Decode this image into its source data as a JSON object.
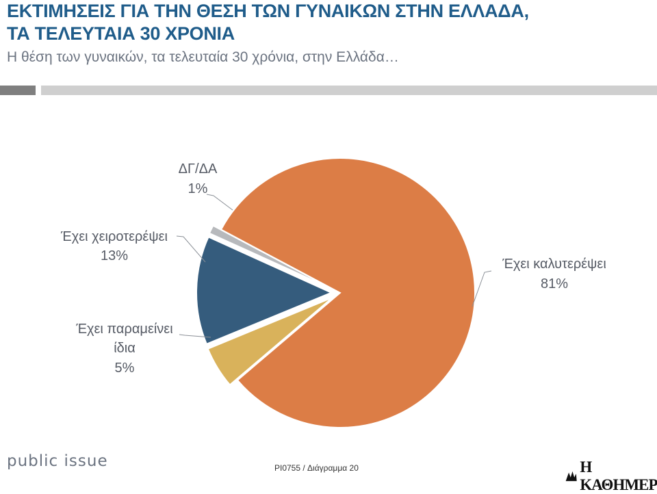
{
  "header": {
    "title_line1": "ΕΚΤΙΜΗΣΕΙΣ ΓΙΑ ΤΗΝ ΘΕΣΗ ΤΩΝ ΓΥΝΑΙΚΩΝ ΣΤΗΝ ΕΛΛΑΔΑ,",
    "title_line2": "ΤΑ ΤΕΛΕΥΤΑΙΑ 30 ΧΡΟΝΙΑ",
    "subtitle": "Η θέση των γυναικών, τα τελευταία 30 χρόνια, στην Ελλάδα…"
  },
  "chart_data": {
    "type": "pie",
    "slices": [
      {
        "label": "Έχει καλυτερέψει",
        "value": 81,
        "display": "81%",
        "color": "#dc7d46"
      },
      {
        "label": "Έχει παραμείνει ίδια",
        "label_lines": [
          "Έχει παραμείνει",
          "ίδια"
        ],
        "value": 5,
        "display": "5%",
        "color": "#d9b25b"
      },
      {
        "label": "Έχει χειροτερέψει",
        "value": 13,
        "display": "13%",
        "color": "#355c7d"
      },
      {
        "label": "ΔΓ/ΔΑ",
        "value": 1,
        "display": "1%",
        "color": "#b7b9bc"
      }
    ]
  },
  "footer": {
    "brand": "public issue",
    "code": "PI0755 / Διάγραμμα 20",
    "newspaper": "Η ΚΑΘΗΜΕΡΙΝΗ"
  }
}
